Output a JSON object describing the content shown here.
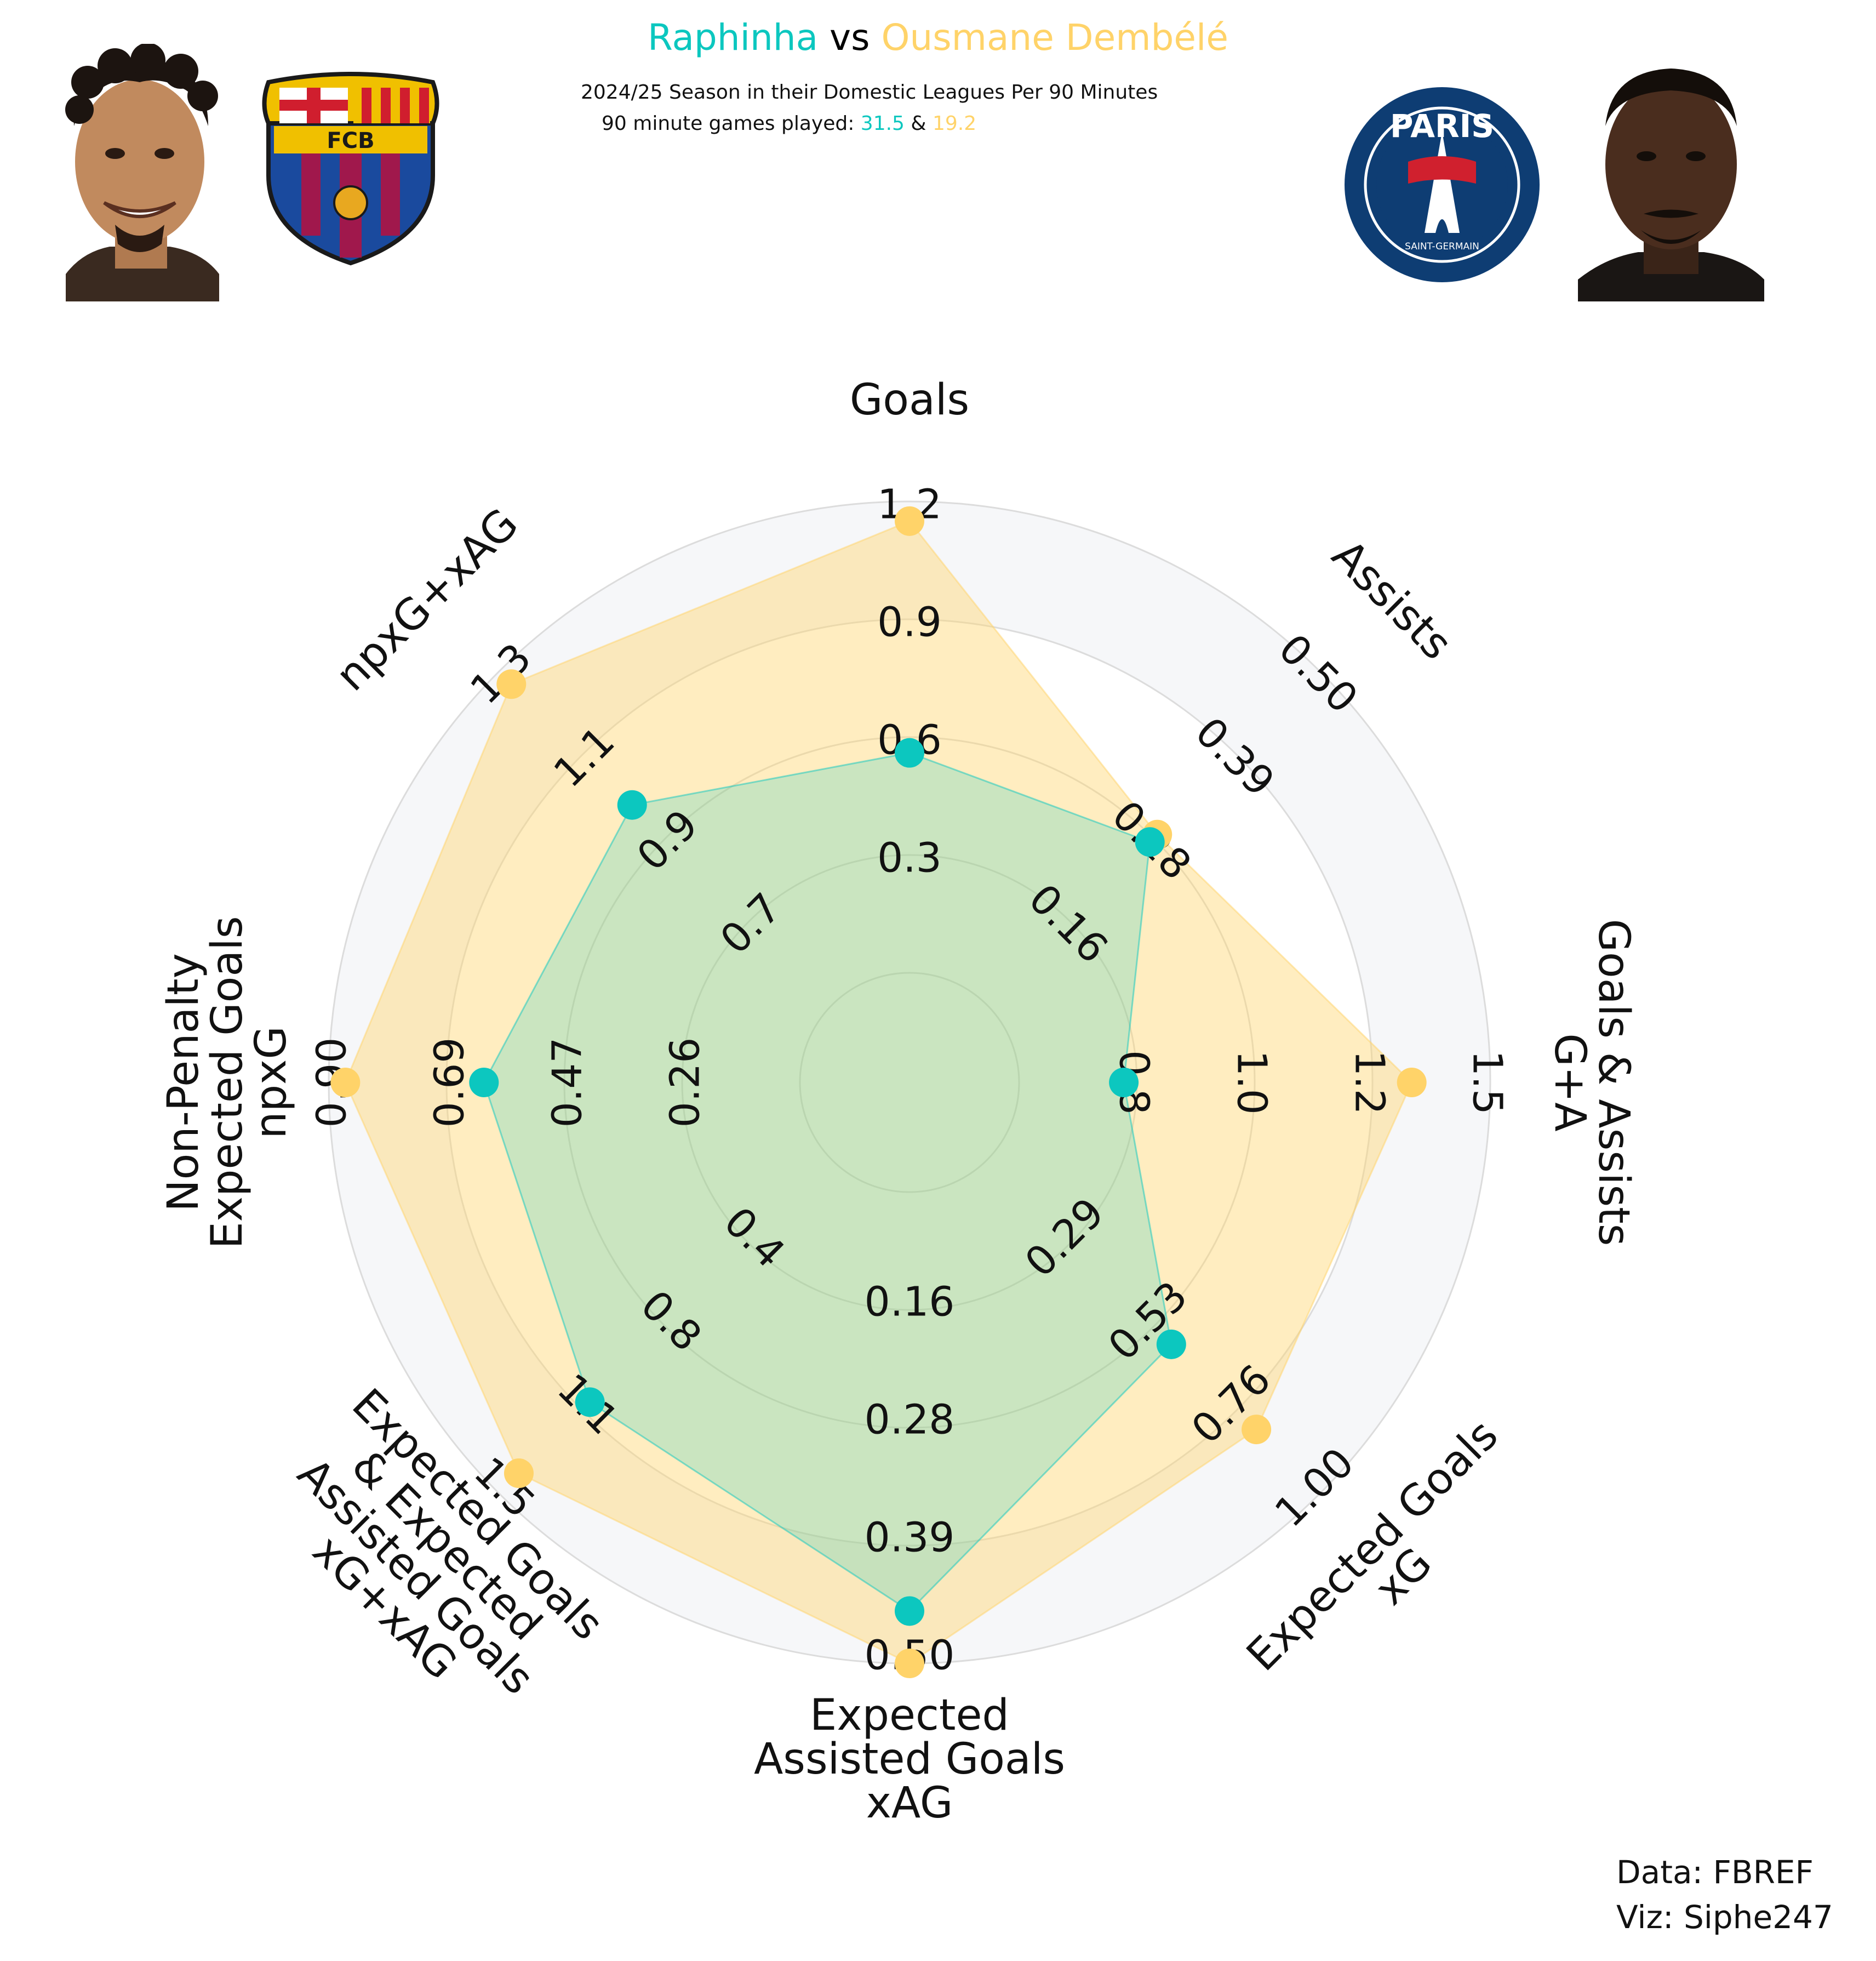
{
  "header": {
    "player1": "Raphinha",
    "vs": "vs",
    "player2": "Ousmane Dembélé",
    "season_line": "2024/25 Season in their Domestic Leagues Per 90 Minutes",
    "games_label": "90 minute games played:",
    "games1": "31.5",
    "amp": "&",
    "games2": "19.2"
  },
  "badges": {
    "left_club_text": "FCB",
    "right_club_top": "PARIS",
    "right_club_bottom": "SAINT-GERMAIN"
  },
  "credits": {
    "data": "Data: FBREF",
    "viz": "Viz: Siphe247"
  },
  "colors": {
    "player1": "#0cc7bf",
    "player2": "#ffd369",
    "ring_band": "#f6f7f9",
    "grid": "#dcdcdc"
  },
  "chart_data": {
    "type": "radar",
    "categories": [
      "Goals",
      "Assists",
      "Goals & Assists\nG+A",
      "Expected Goals\nxG",
      "Expected\nAssisted Goals\nxAG",
      "Expected Goals\n& Expected\nAssisted Goals\nxG+xAG",
      "Non-Penalty\nExpected Goals\nnpxG",
      "npxG+xAG"
    ],
    "tick_labels": [
      [
        "0.3",
        "0.6",
        "0.9",
        "1.2"
      ],
      [
        "0.16",
        "0.28",
        "0.39",
        "0.50"
      ],
      [
        "0.8",
        "1.0",
        "1.2",
        "1.5"
      ],
      [
        "0.29",
        "0.53",
        "0.76",
        "1.00"
      ],
      [
        "0.16",
        "0.28",
        "0.39",
        "0.50"
      ],
      [
        "0.4",
        "0.8",
        "1.1",
        "1.5"
      ],
      [
        "0.26",
        "0.47",
        "0.69",
        "0.90"
      ],
      [
        "0.7",
        "0.9",
        "1.1",
        "1.3"
      ]
    ],
    "ranges": [
      [
        0.0,
        1.2
      ],
      [
        0.05,
        0.5
      ],
      [
        0.6,
        1.5
      ],
      [
        0.06,
        1.0
      ],
      [
        0.05,
        0.5
      ],
      [
        0.0,
        1.5
      ],
      [
        0.05,
        0.9
      ],
      [
        0.5,
        1.3
      ]
    ],
    "series": [
      {
        "name": "Raphinha",
        "values": [
          0.56,
          0.27,
          0.8,
          0.58,
          0.45,
          1.09,
          0.62,
          0.98
        ]
      },
      {
        "name": "Ousmane Dembélé",
        "values": [
          1.15,
          0.28,
          1.35,
          0.82,
          0.5,
          1.41,
          0.87,
          1.27
        ]
      }
    ],
    "grid": true
  }
}
